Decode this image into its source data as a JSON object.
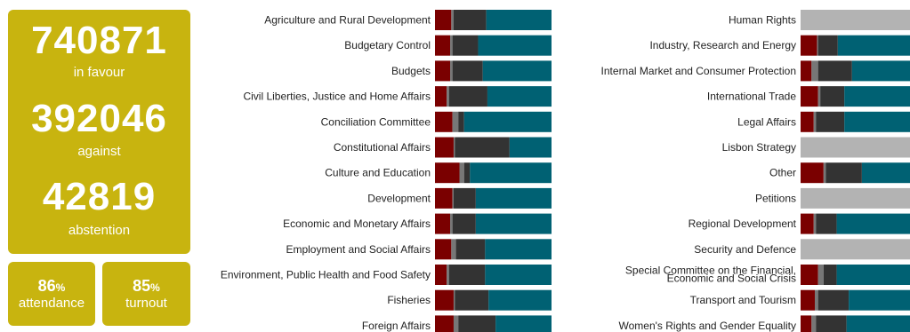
{
  "summary": {
    "in_favour": {
      "value": "740871",
      "label": "in favour"
    },
    "against": {
      "value": "392046",
      "label": "against"
    },
    "abstention": {
      "value": "42819",
      "label": "abstention"
    },
    "attendance": {
      "value": "86",
      "unit": "%",
      "label": "attendance"
    },
    "turnout": {
      "value": "85",
      "unit": "%",
      "label": "turnout"
    }
  },
  "colors": {
    "against": "#7a0000",
    "abstention": "#777777",
    "absent": "#333333",
    "in_favour": "#006173",
    "no_data": "#b3b3b3",
    "panel": "#c8b40f"
  },
  "chart_data": {
    "type": "bar",
    "orientation": "horizontal-stacked",
    "segment_order": [
      "against",
      "abstention",
      "absent",
      "in_favour"
    ],
    "units": "percent of votes",
    "columns": [
      {
        "rows": [
          {
            "label": "Agriculture and Rural Development",
            "against": 14,
            "abstention": 2,
            "absent": 28,
            "in_favour": 56
          },
          {
            "label": "Budgetary Control",
            "against": 13,
            "abstention": 2,
            "absent": 22,
            "in_favour": 63
          },
          {
            "label": "Budgets",
            "against": 13,
            "abstention": 2,
            "absent": 26,
            "in_favour": 59
          },
          {
            "label": "Civil Liberties, Justice and Home Affairs",
            "against": 10,
            "abstention": 2,
            "absent": 33,
            "in_favour": 55
          },
          {
            "label": "Conciliation Committee",
            "against": 15,
            "abstention": 5,
            "absent": 5,
            "in_favour": 75
          },
          {
            "label": "Constitutional Affairs",
            "against": 16,
            "abstention": 1,
            "absent": 47,
            "in_favour": 36
          },
          {
            "label": "Culture and Education",
            "against": 21,
            "abstention": 4,
            "absent": 5,
            "in_favour": 70
          },
          {
            "label": "Development",
            "against": 15,
            "abstention": 1,
            "absent": 19,
            "in_favour": 65
          },
          {
            "label": "Economic and Monetary Affairs",
            "against": 13,
            "abstention": 2,
            "absent": 20,
            "in_favour": 65
          },
          {
            "label": "Employment and Social Affairs",
            "against": 14,
            "abstention": 4,
            "absent": 25,
            "in_favour": 57
          },
          {
            "label": "Environment, Public Health and Food Safety",
            "against": 10,
            "abstention": 2,
            "absent": 31,
            "in_favour": 57
          },
          {
            "label": "Fisheries",
            "against": 16,
            "abstention": 1,
            "absent": 29,
            "in_favour": 54
          },
          {
            "label": "Foreign Affairs",
            "against": 16,
            "abstention": 4,
            "absent": 32,
            "in_favour": 48
          }
        ]
      },
      {
        "rows": [
          {
            "label": "Human Rights",
            "no_data": true
          },
          {
            "label": "Industry, Research and Energy",
            "against": 15,
            "abstention": 1,
            "absent": 18,
            "in_favour": 66
          },
          {
            "label": "Internal Market and Consumer Protection",
            "against": 10,
            "abstention": 6,
            "absent": 31,
            "in_favour": 53
          },
          {
            "label": "International Trade",
            "against": 16,
            "abstention": 2,
            "absent": 22,
            "in_favour": 60
          },
          {
            "label": "Legal Affairs",
            "against": 12,
            "abstention": 2,
            "absent": 26,
            "in_favour": 60
          },
          {
            "label": "Lisbon Strategy",
            "no_data": true
          },
          {
            "label": "Other",
            "against": 21,
            "abstention": 2,
            "absent": 33,
            "in_favour": 44
          },
          {
            "label": "Petitions",
            "no_data": true
          },
          {
            "label": "Regional Development",
            "against": 12,
            "abstention": 2,
            "absent": 19,
            "in_favour": 67
          },
          {
            "label": "Security and Defence",
            "no_data": true
          },
          {
            "label": "Special Committee on the Financial, Economic and Social Crisis",
            "label_lines": [
              "Special Committee on the Financial,",
              "Economic and Social Crisis"
            ],
            "against": 16,
            "abstention": 5,
            "absent": 12,
            "in_favour": 67
          },
          {
            "label": "Transport and Tourism",
            "against": 13,
            "abstention": 3,
            "absent": 28,
            "in_favour": 56
          },
          {
            "label": "Women's Rights and Gender Equality",
            "against": 10,
            "abstention": 4,
            "absent": 28,
            "in_favour": 58
          }
        ]
      }
    ]
  }
}
